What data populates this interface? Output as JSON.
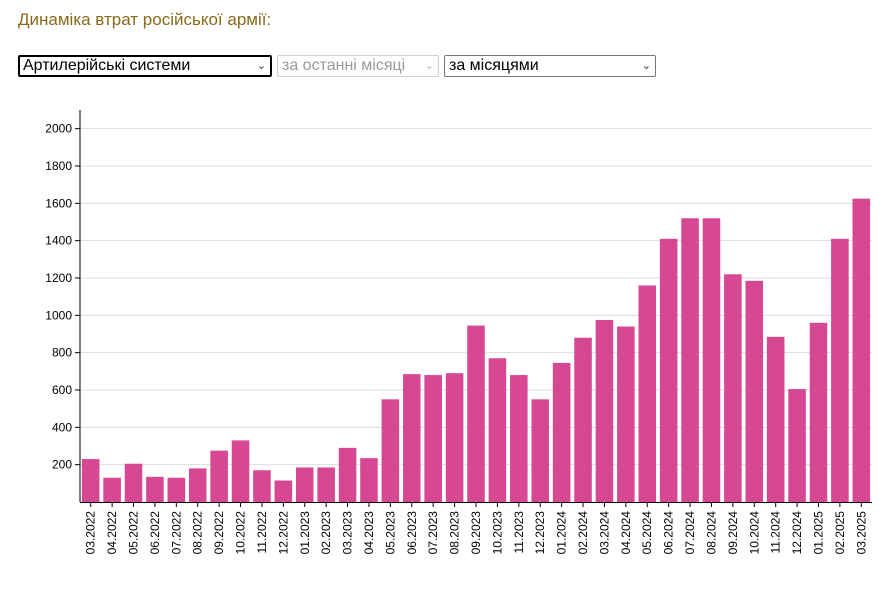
{
  "header": {
    "title": "Динаміка втрат російської армії:"
  },
  "controls": {
    "category_select": {
      "value": "Артилерійські системи"
    },
    "period_select": {
      "value": "за останні місяці"
    },
    "grouping_select": {
      "value": "за місяцями"
    }
  },
  "colors": {
    "bar": "#d64891",
    "grid": "#dddddd",
    "title": "#8a6a1a"
  },
  "chart_data": {
    "type": "bar",
    "title": "",
    "xlabel": "",
    "ylabel": "",
    "ylim": [
      0,
      2000
    ],
    "yticks": [
      200,
      400,
      600,
      800,
      1000,
      1200,
      1400,
      1600,
      1800,
      2000
    ],
    "grid": true,
    "categories": [
      "03.2022",
      "04.2022",
      "05.2022",
      "06.2022",
      "07.2022",
      "08.2022",
      "09.2022",
      "10.2022",
      "11.2022",
      "12.2022",
      "01.2023",
      "02.2023",
      "03.2023",
      "04.2023",
      "05.2023",
      "06.2023",
      "07.2023",
      "08.2023",
      "09.2023",
      "10.2023",
      "11.2023",
      "12.2023",
      "01.2024",
      "02.2024",
      "03.2024",
      "04.2024",
      "05.2024",
      "06.2024",
      "07.2024",
      "08.2024",
      "09.2024",
      "10.2024",
      "11.2024",
      "12.2024",
      "01.2025",
      "02.2025",
      "03.2025"
    ],
    "values": [
      230,
      130,
      205,
      135,
      130,
      180,
      275,
      330,
      170,
      115,
      185,
      185,
      290,
      235,
      550,
      685,
      680,
      690,
      945,
      770,
      680,
      550,
      745,
      880,
      975,
      940,
      1160,
      1410,
      1520,
      1520,
      1220,
      1185,
      885,
      605,
      960,
      1410,
      1625
    ]
  }
}
